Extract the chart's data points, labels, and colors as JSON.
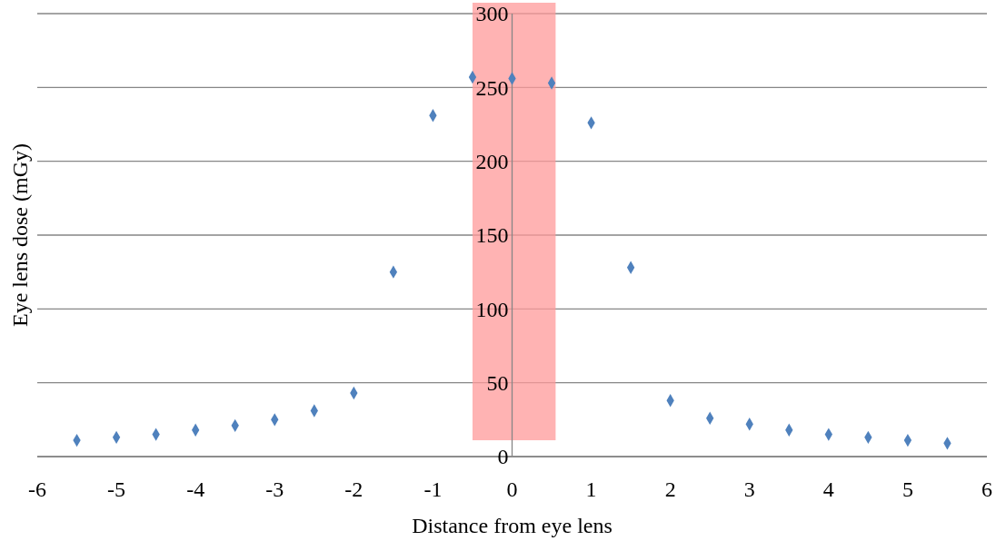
{
  "chart_data": {
    "type": "scatter",
    "xlabel": "Distance from eye lens",
    "ylabel": "Eye lens dose (mGy)",
    "x": [
      -5.5,
      -5,
      -4.5,
      -4,
      -3.5,
      -3,
      -2.5,
      -2,
      -1.5,
      -1,
      -0.5,
      0,
      0.5,
      1,
      1.5,
      2,
      2.5,
      3,
      3.5,
      4,
      4.5,
      5,
      5.5
    ],
    "series": [
      {
        "color": "#4f81bd",
        "values": [
          11,
          13,
          15,
          18,
          21,
          25,
          31,
          43,
          125,
          231,
          257,
          256,
          253,
          226,
          128,
          38,
          26,
          22,
          18,
          15,
          13,
          11,
          9
        ]
      }
    ],
    "xlim": [
      -6,
      6
    ],
    "xticks": [
      -6,
      -5,
      -4,
      -3,
      -2,
      -1,
      0,
      1,
      2,
      3,
      4,
      5,
      6
    ],
    "ylim": [
      0,
      300
    ],
    "yticks": [
      0,
      50,
      100,
      150,
      200,
      250,
      300
    ],
    "grid": "y",
    "marker": "diamond",
    "bands": [
      {
        "axis": "x",
        "from": -0.5,
        "to": 0.55,
        "color": "#ff9999"
      }
    ]
  }
}
